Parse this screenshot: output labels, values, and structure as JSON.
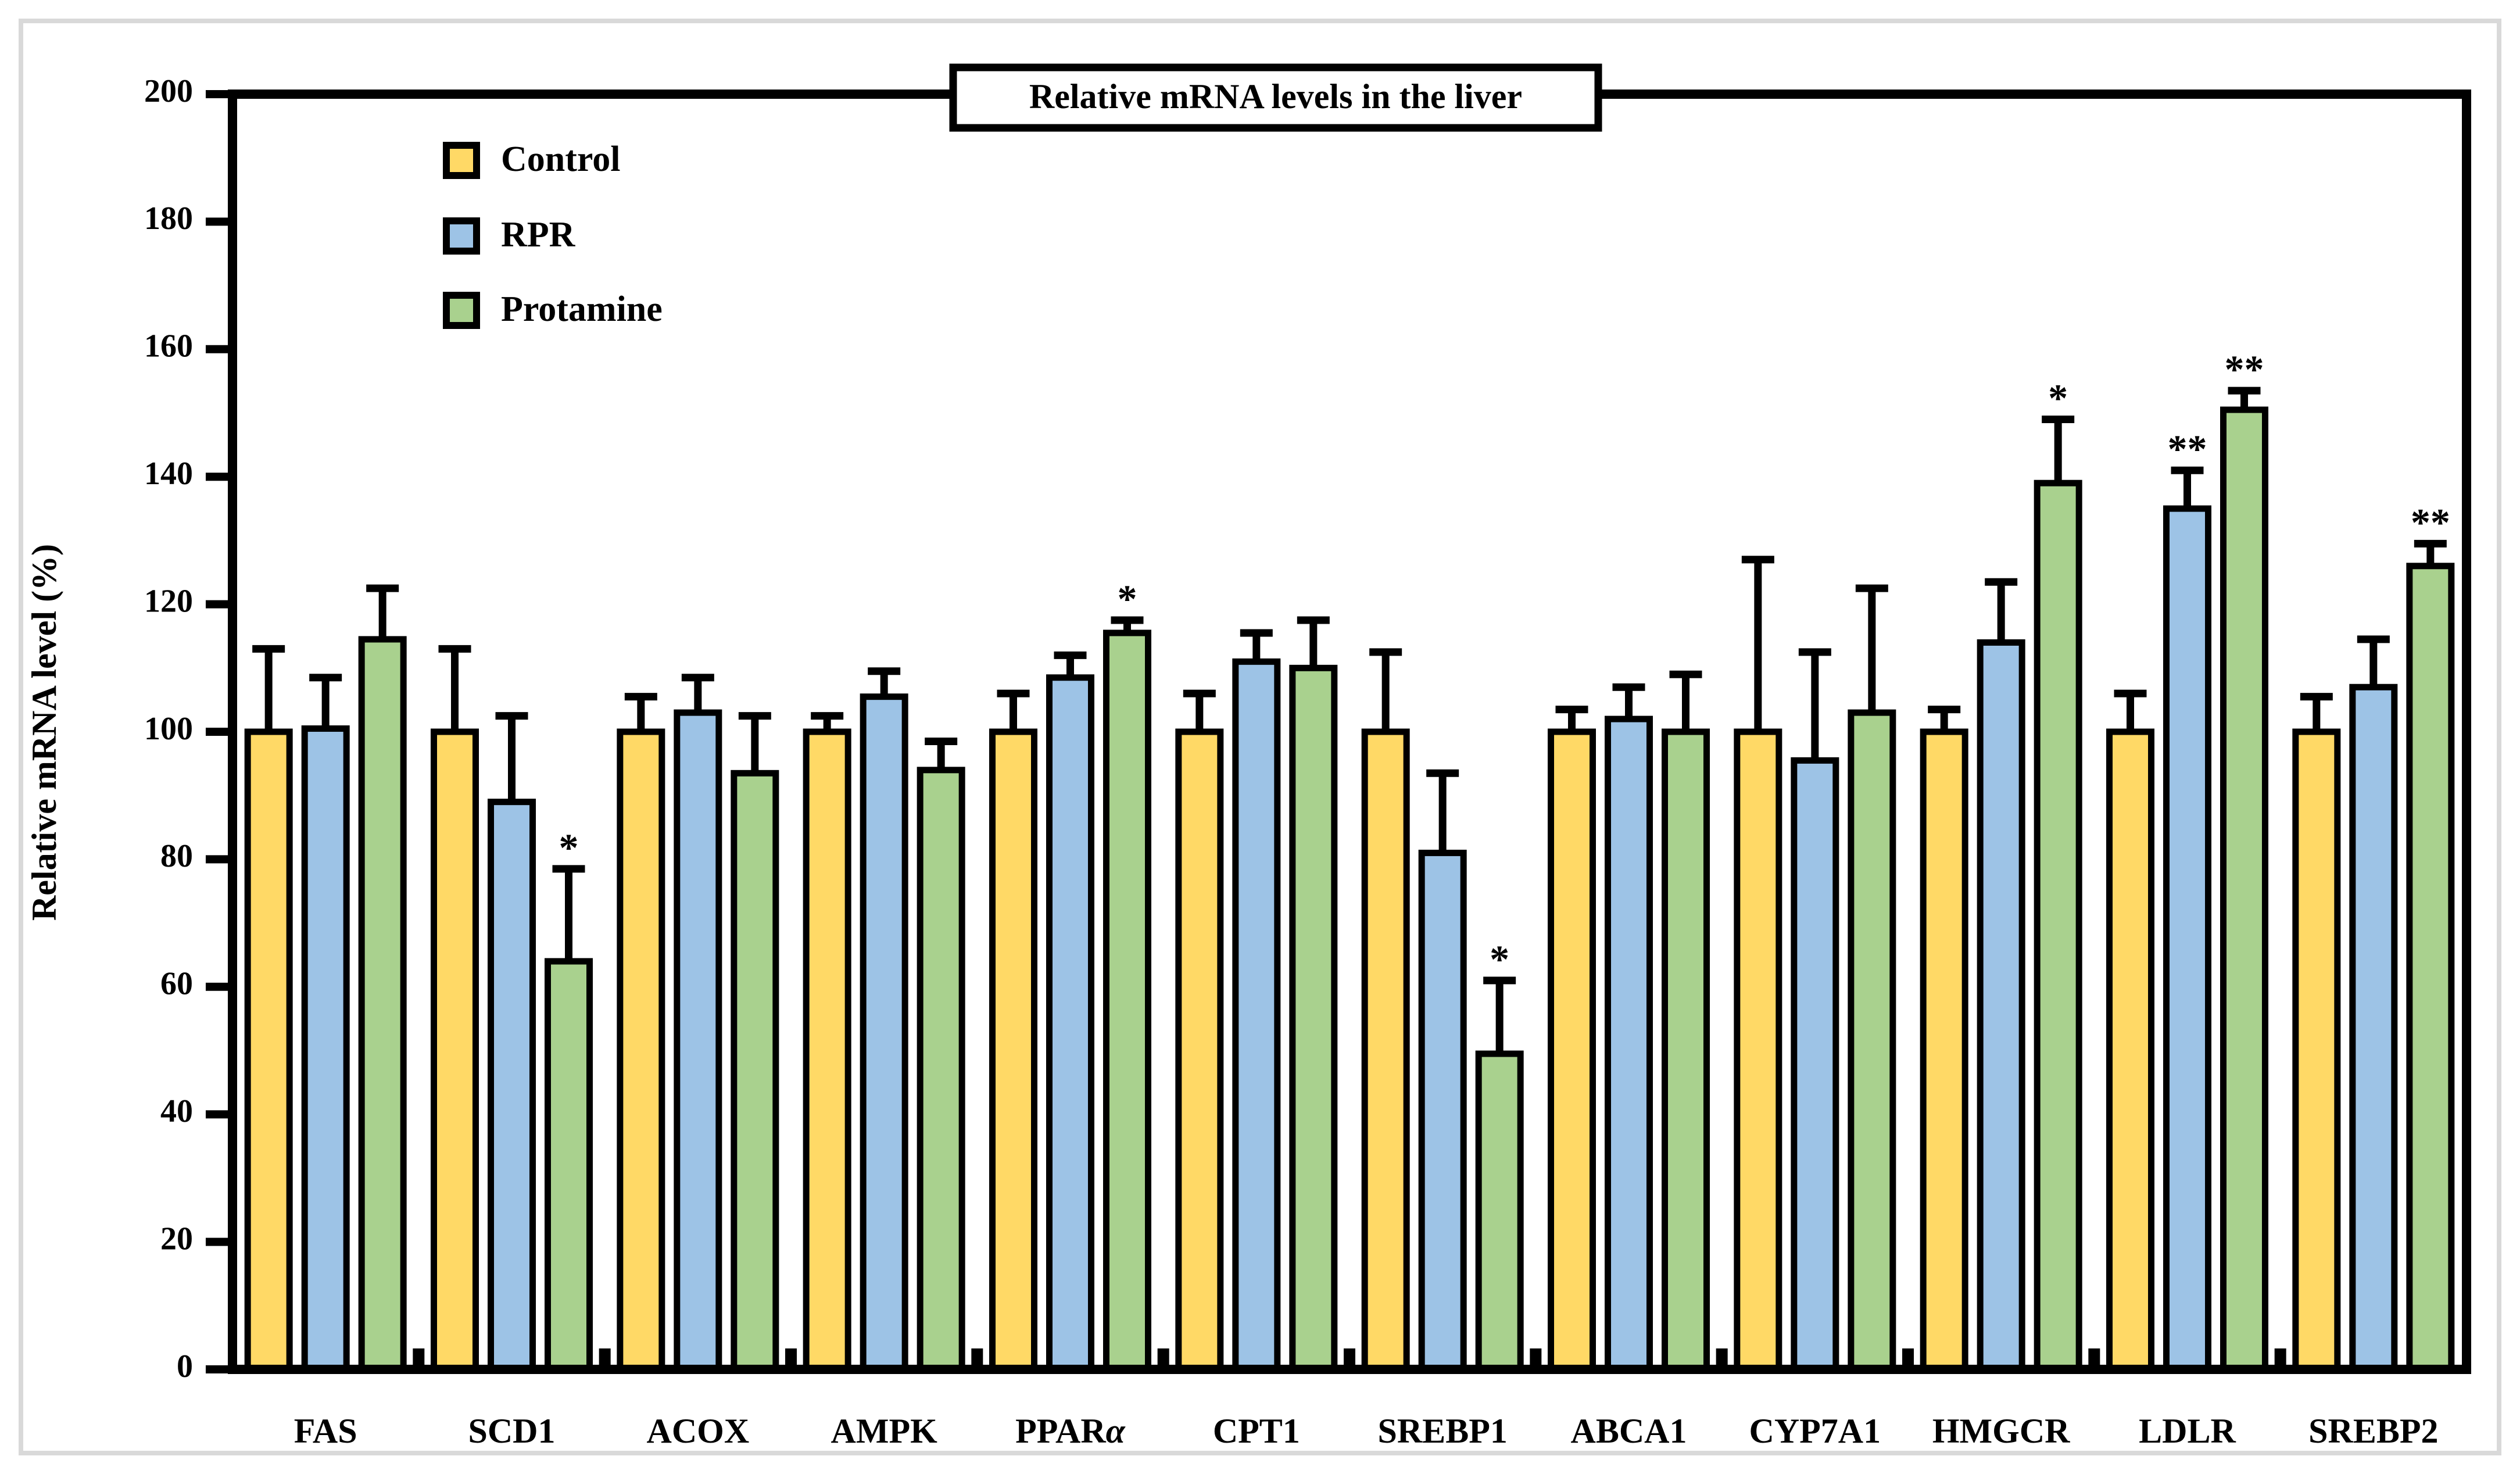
{
  "chart_data": {
    "type": "bar",
    "title": "Relative mRNA levels in the liver",
    "xlabel": "",
    "ylabel": "Relative mRNA level (%)",
    "ylim": [
      0,
      200
    ],
    "ytick_step": 20,
    "grid": false,
    "legend_position": "top-left-inside",
    "categories": [
      "FAS",
      "SCD1",
      "ACOX",
      "AMPK",
      "PPARα",
      "CPT1",
      "SREBP1",
      "ABCA1",
      "CYP7A1",
      "HMGCR",
      "LDLR",
      "SREBP2"
    ],
    "series": [
      {
        "name": "Control",
        "color": "#FFD966",
        "values": [
          100,
          100,
          100,
          100,
          100,
          100,
          100,
          100,
          100,
          100,
          100,
          100
        ],
        "errors": [
          13,
          13,
          5.5,
          2.5,
          6,
          6,
          12.5,
          3.5,
          27,
          3.5,
          6,
          5.5
        ],
        "sig": [
          "",
          "",
          "",
          "",
          "",
          "",
          "",
          "",
          "",
          "",
          "",
          ""
        ]
      },
      {
        "name": "RPR",
        "color": "#9DC3E6",
        "values": [
          100.5,
          89,
          103,
          105.5,
          108.5,
          111,
          81,
          102,
          95.5,
          114,
          135,
          107
        ],
        "errors": [
          8,
          13.5,
          5.5,
          4,
          3.5,
          4.5,
          12.5,
          5,
          17,
          9.5,
          6,
          7.5
        ],
        "sig": [
          "",
          "",
          "",
          "",
          "",
          "",
          "",
          "",
          "",
          "",
          "**",
          ""
        ]
      },
      {
        "name": "Protamine",
        "color": "#A9D18E",
        "values": [
          114.5,
          64,
          93.5,
          94,
          115.5,
          110,
          49.5,
          100,
          103,
          139,
          150.5,
          126
        ],
        "errors": [
          8,
          14.5,
          9,
          4.5,
          2,
          7.5,
          11.5,
          9,
          19.5,
          10,
          3,
          3.5
        ],
        "sig": [
          "",
          "*",
          "",
          "",
          "*",
          "",
          "*",
          "",
          "",
          "*",
          "**",
          "**"
        ]
      }
    ],
    "colors": {
      "bar_outline": "#000000",
      "axis": "#000000",
      "error_bar": "#000000",
      "outer_frame": "#D9D9D9",
      "background": "#FFFFFF"
    }
  }
}
